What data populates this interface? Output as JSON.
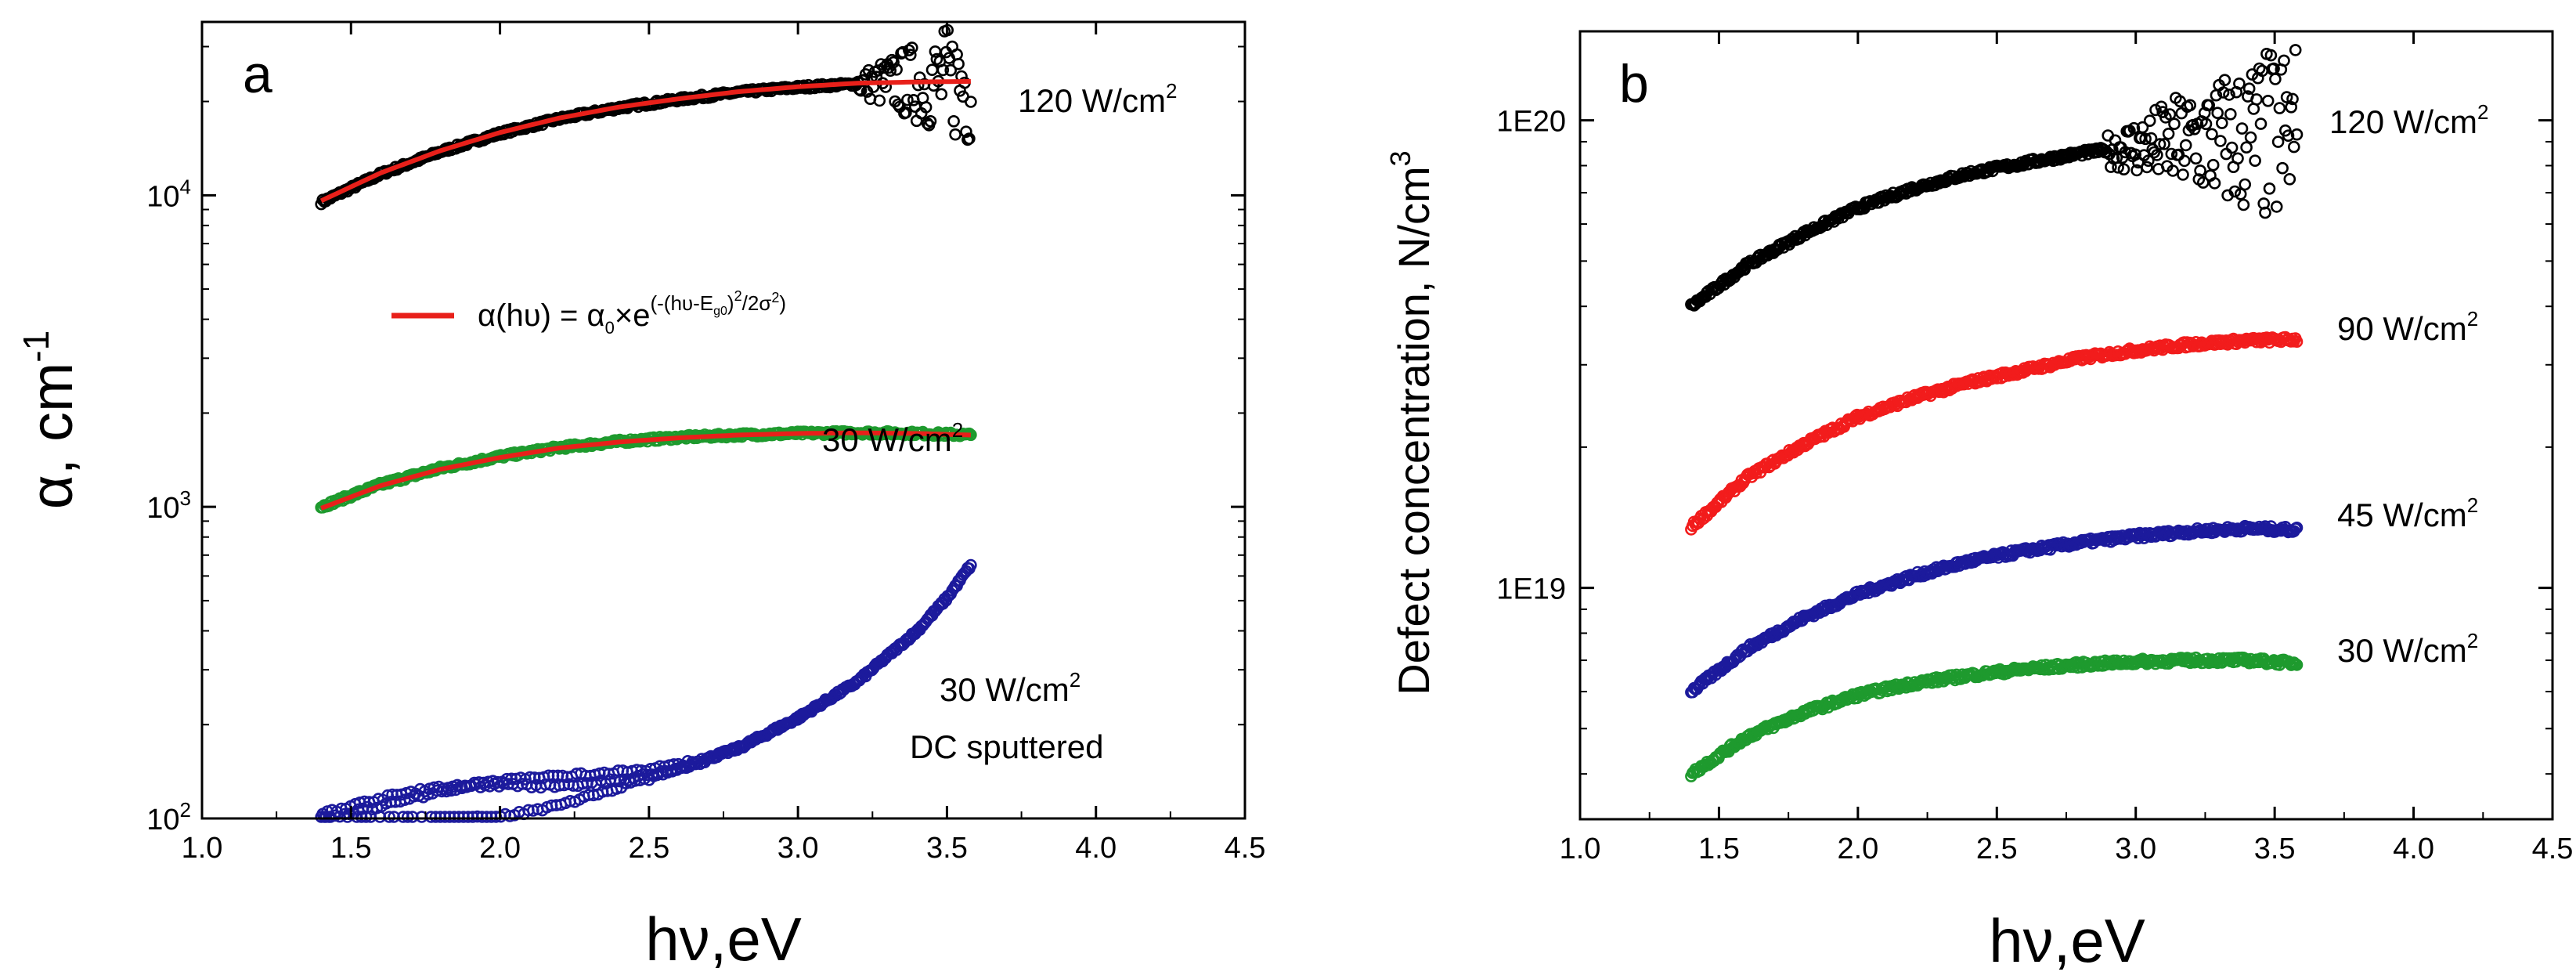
{
  "chart_data": [
    {
      "type": "scatter",
      "panel_label": "a",
      "xlabel": "hν,eV",
      "ylabel": "α, cm",
      "ylabel_sup": "-1",
      "y_scale": "log",
      "xlim": [
        1.0,
        4.5
      ],
      "ylim": [
        100,
        36000
      ],
      "x_ticks": [
        {
          "value": 1.0,
          "label": "1.0"
        },
        {
          "value": 1.5,
          "label": "1.5"
        },
        {
          "value": 2.0,
          "label": "2.0"
        },
        {
          "value": 2.5,
          "label": "2.5"
        },
        {
          "value": 3.0,
          "label": "3.0"
        },
        {
          "value": 3.5,
          "label": "3.5"
        },
        {
          "value": 4.0,
          "label": "4.0"
        },
        {
          "value": 4.5,
          "label": "4.5"
        }
      ],
      "y_ticks": [
        {
          "value": 100,
          "base": "10",
          "exp": "2"
        },
        {
          "value": 1000,
          "base": "10",
          "exp": "3"
        },
        {
          "value": 10000,
          "base": "10",
          "exp": "4"
        }
      ],
      "legend": {
        "position": "upper-middle",
        "line_color": "#e8201a",
        "lhs": "α(hυ) = α",
        "lhs_sub": "0",
        "times": "×e",
        "exp_part1": "(-(hυ-E",
        "exp_sub": "g0",
        "exp_part2": ")",
        "exp_sup": "2",
        "exp_part3": "/2σ",
        "exp_sup2": "2",
        "exp_part4": ")"
      },
      "series": [
        {
          "name": "120 W/cm",
          "unit_sup": "2",
          "label_lines": [
            "120 W/cm"
          ],
          "color": "#000000",
          "noise_start": 3.2,
          "noise": 0.05,
          "x": [
            1.4,
            1.6,
            1.8,
            2.0,
            2.2,
            2.4,
            2.6,
            2.8,
            3.0,
            3.2,
            3.4,
            3.58
          ],
          "y": [
            9500,
            11700,
            13800,
            15800,
            17600,
            19100,
            20300,
            21400,
            22200,
            22800,
            23000,
            23100
          ]
        },
        {
          "name": "30 W/cm",
          "unit_sup": "2",
          "label_lines": [
            "30 W/cm"
          ],
          "color": "#1e9a2e",
          "noise_start": 3.9,
          "noise": 0.0,
          "x": [
            1.4,
            1.6,
            1.8,
            2.0,
            2.2,
            2.4,
            2.6,
            2.8,
            3.0,
            3.2,
            3.4,
            3.58
          ],
          "y": [
            1000,
            1180,
            1330,
            1450,
            1550,
            1620,
            1670,
            1700,
            1720,
            1730,
            1720,
            1700
          ]
        },
        {
          "name": "30 W/cm DC sputtered",
          "unit_sup": "2",
          "label_lines": [
            "30 W/cm",
            "DC sputtered"
          ],
          "color": "#1c1a9c",
          "noise_start": 3.9,
          "noise": 0.0,
          "x": [
            1.4,
            1.6,
            1.8,
            2.0,
            2.2,
            2.4,
            2.6,
            2.8,
            3.0,
            3.2,
            3.4,
            3.5,
            3.58
          ],
          "y": [
            100,
            108,
            115,
            120,
            124,
            133,
            145,
            168,
            210,
            275,
            400,
            510,
            650
          ]
        }
      ],
      "fits": [
        {
          "name": "fit 120 W/cm2",
          "color": "#e8201a",
          "x": [
            1.4,
            1.6,
            1.8,
            2.0,
            2.2,
            2.4,
            2.6,
            2.8,
            3.0,
            3.2,
            3.4,
            3.58
          ],
          "y": [
            9600,
            11800,
            13900,
            15900,
            17700,
            19200,
            20400,
            21500,
            22300,
            22900,
            23100,
            23200
          ]
        },
        {
          "name": "fit 30 W/cm2",
          "color": "#e8201a",
          "x": [
            1.4,
            1.6,
            1.8,
            2.0,
            2.2,
            2.4,
            2.6,
            2.8,
            3.0,
            3.2,
            3.4,
            3.58
          ],
          "y": [
            990,
            1170,
            1320,
            1440,
            1545,
            1615,
            1665,
            1700,
            1720,
            1728,
            1720,
            1700
          ]
        }
      ]
    },
    {
      "type": "scatter",
      "panel_label": "b",
      "xlabel": "hν,eV",
      "ylabel": "Defect concentration, N/cm",
      "ylabel_sup": "3",
      "y_scale": "log",
      "xlim": [
        1.0,
        4.5
      ],
      "ylim": [
        3.2e+18,
        1.55e+20
      ],
      "x_ticks": [
        {
          "value": 1.0,
          "label": "1.0"
        },
        {
          "value": 1.5,
          "label": "1.5"
        },
        {
          "value": 2.0,
          "label": "2.0"
        },
        {
          "value": 2.5,
          "label": "2.5"
        },
        {
          "value": 3.0,
          "label": "3.0"
        },
        {
          "value": 3.5,
          "label": "3.5"
        },
        {
          "value": 4.0,
          "label": "4.0"
        },
        {
          "value": 4.5,
          "label": "4.5"
        }
      ],
      "y_ticks": [
        {
          "value": 1e+19,
          "label": "1E19"
        },
        {
          "value": 1e+20,
          "label": "1E20"
        }
      ],
      "series": [
        {
          "name": "120 W/cm",
          "unit_sup": "2",
          "label_lines": [
            "120 W/cm"
          ],
          "color": "#000000",
          "noise_start": 2.9,
          "noise": 0.05,
          "x": [
            1.4,
            1.6,
            1.8,
            2.0,
            2.2,
            2.4,
            2.6,
            2.8,
            3.0,
            3.2,
            3.4,
            3.58
          ],
          "y": [
            4e+19,
            4.9e+19,
            5.7e+19,
            6.5e+19,
            7.15e+19,
            7.7e+19,
            8.1e+19,
            8.5e+19,
            8.8e+19,
            9e+19,
            9.1e+19,
            9.2e+19
          ]
        },
        {
          "name": "90 W/cm",
          "unit_sup": "2",
          "label_lines": [
            "90 W/cm"
          ],
          "color": "#f21c1c",
          "noise_start": 3.9,
          "noise": 0.0,
          "x": [
            1.4,
            1.6,
            1.8,
            2.0,
            2.2,
            2.4,
            2.6,
            2.8,
            3.0,
            3.2,
            3.4,
            3.58
          ],
          "y": [
            1.35e+19,
            1.72e+19,
            2.02e+19,
            2.32e+19,
            2.55e+19,
            2.75e+19,
            2.92e+19,
            3.1e+19,
            3.22e+19,
            3.32e+19,
            3.38e+19,
            3.4e+19
          ]
        },
        {
          "name": "45 W/cm",
          "unit_sup": "2",
          "label_lines": [
            "45 W/cm"
          ],
          "color": "#1c1a9c",
          "noise_start": 3.9,
          "noise": 0.0,
          "x": [
            1.4,
            1.6,
            1.8,
            2.0,
            2.2,
            2.4,
            2.6,
            2.8,
            3.0,
            3.2,
            3.4,
            3.58
          ],
          "y": [
            6e+18,
            7.4e+18,
            8.6e+18,
            9.7e+18,
            1.06e+19,
            1.14e+19,
            1.2e+19,
            1.25e+19,
            1.29e+19,
            1.32e+19,
            1.34e+19,
            1.33e+19
          ]
        },
        {
          "name": "30 W/cm",
          "unit_sup": "2",
          "label_lines": [
            "30 W/cm"
          ],
          "color": "#1e9a2e",
          "noise_start": 3.9,
          "noise": 0.0,
          "x": [
            1.4,
            1.6,
            1.8,
            2.0,
            2.2,
            2.4,
            2.6,
            2.8,
            3.0,
            3.2,
            3.4,
            3.58
          ],
          "y": [
            4e+18,
            4.8e+18,
            5.4e+18,
            5.9e+18,
            6.25e+18,
            6.5e+18,
            6.7e+18,
            6.85e+18,
            6.95e+18,
            7e+18,
            7e+18,
            6.9e+18
          ]
        }
      ]
    }
  ]
}
